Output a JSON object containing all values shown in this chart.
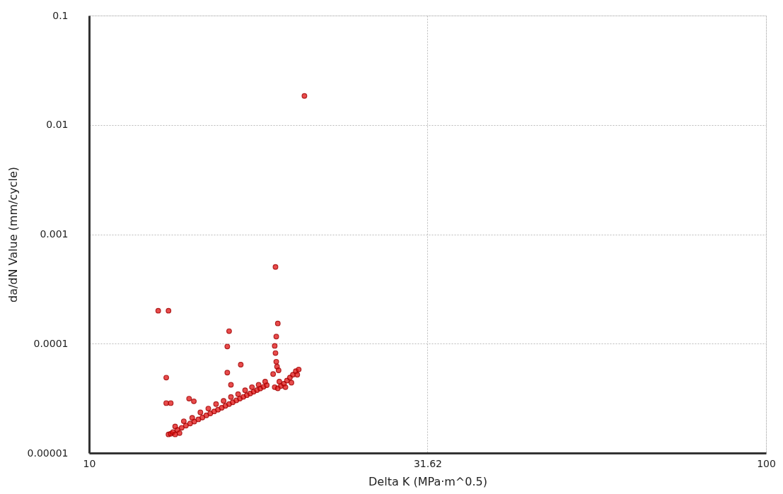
{
  "chart_data": {
    "type": "scatter",
    "xlabel": "Delta K (MPa·m^0.5)",
    "ylabel": "da/dN Value (mm/cycle)",
    "log": "xy",
    "grid": true,
    "marker": "circle",
    "xlim": [
      10,
      100
    ],
    "xticks": [
      10,
      31.62,
      100
    ],
    "ylim": [
      1e-05,
      0.1
    ],
    "yticks": [
      {
        "value": 1e-05,
        "label": "0.00001"
      },
      0.0001,
      0.001,
      0.01,
      0.1
    ],
    "series": [
      {
        "color": "#e01010",
        "x": [
          12.65,
          13.1,
          20.8,
          18.85,
          19.0,
          16.1,
          16.0,
          13.0,
          13.0,
          13.2,
          14.05,
          14.28,
          16.0,
          16.75,
          16.2,
          18.9,
          18.8,
          18.85,
          18.9,
          18.95,
          19.05,
          18.7,
          13.1,
          13.2,
          13.3,
          13.4,
          13.5,
          13.6,
          13.7,
          13.9,
          14.1,
          14.3,
          14.5,
          14.7,
          14.9,
          15.1,
          15.3,
          15.5,
          15.7,
          15.9,
          16.1,
          16.3,
          16.5,
          16.7,
          16.9,
          17.1,
          17.3,
          17.5,
          17.7,
          17.9,
          18.1,
          18.3,
          13.4,
          13.8,
          14.2,
          14.6,
          15.0,
          15.4,
          15.8,
          16.2,
          16.6,
          17.0,
          17.4,
          17.8,
          18.2,
          18.8,
          19.0,
          19.2,
          19.4,
          19.6,
          19.8,
          20.0,
          20.2,
          20.4,
          19.1,
          19.5,
          19.9,
          20.3
        ],
        "values": [
          0.0002,
          0.0002,
          0.0184,
          0.000503,
          0.000153,
          0.00013,
          9.41e-05,
          4.89e-05,
          2.86e-05,
          2.86e-05,
          3.14e-05,
          2.97e-05,
          5.43e-05,
          6.43e-05,
          4.2e-05,
          0.000116,
          9.54e-05,
          8.2e-05,
          6.83e-05,
          6.16e-05,
          5.7e-05,
          5.27e-05,
          1.48e-05,
          1.5e-05,
          1.55e-05,
          1.48e-05,
          1.63e-05,
          1.52e-05,
          1.7e-05,
          1.78e-05,
          1.86e-05,
          1.94e-05,
          2.03e-05,
          2.11e-05,
          2.21e-05,
          2.3e-05,
          2.4e-05,
          2.49e-05,
          2.59e-05,
          2.7e-05,
          2.8e-05,
          2.91e-05,
          3.03e-05,
          3.14e-05,
          3.26e-05,
          3.38e-05,
          3.5e-05,
          3.63e-05,
          3.76e-05,
          3.89e-05,
          4.03e-05,
          4.17e-05,
          1.75e-05,
          1.95e-05,
          2.1e-05,
          2.35e-05,
          2.55e-05,
          2.8e-05,
          3e-05,
          3.25e-05,
          3.45e-05,
          3.75e-05,
          4e-05,
          4.2e-05,
          4.5e-05,
          4e-05,
          3.9e-05,
          4.1e-05,
          4.3e-05,
          4.6e-05,
          4.9e-05,
          5.2e-05,
          5.6e-05,
          5.8e-05,
          4.5e-05,
          4e-05,
          4.4e-05,
          5.2e-05
        ]
      }
    ]
  }
}
